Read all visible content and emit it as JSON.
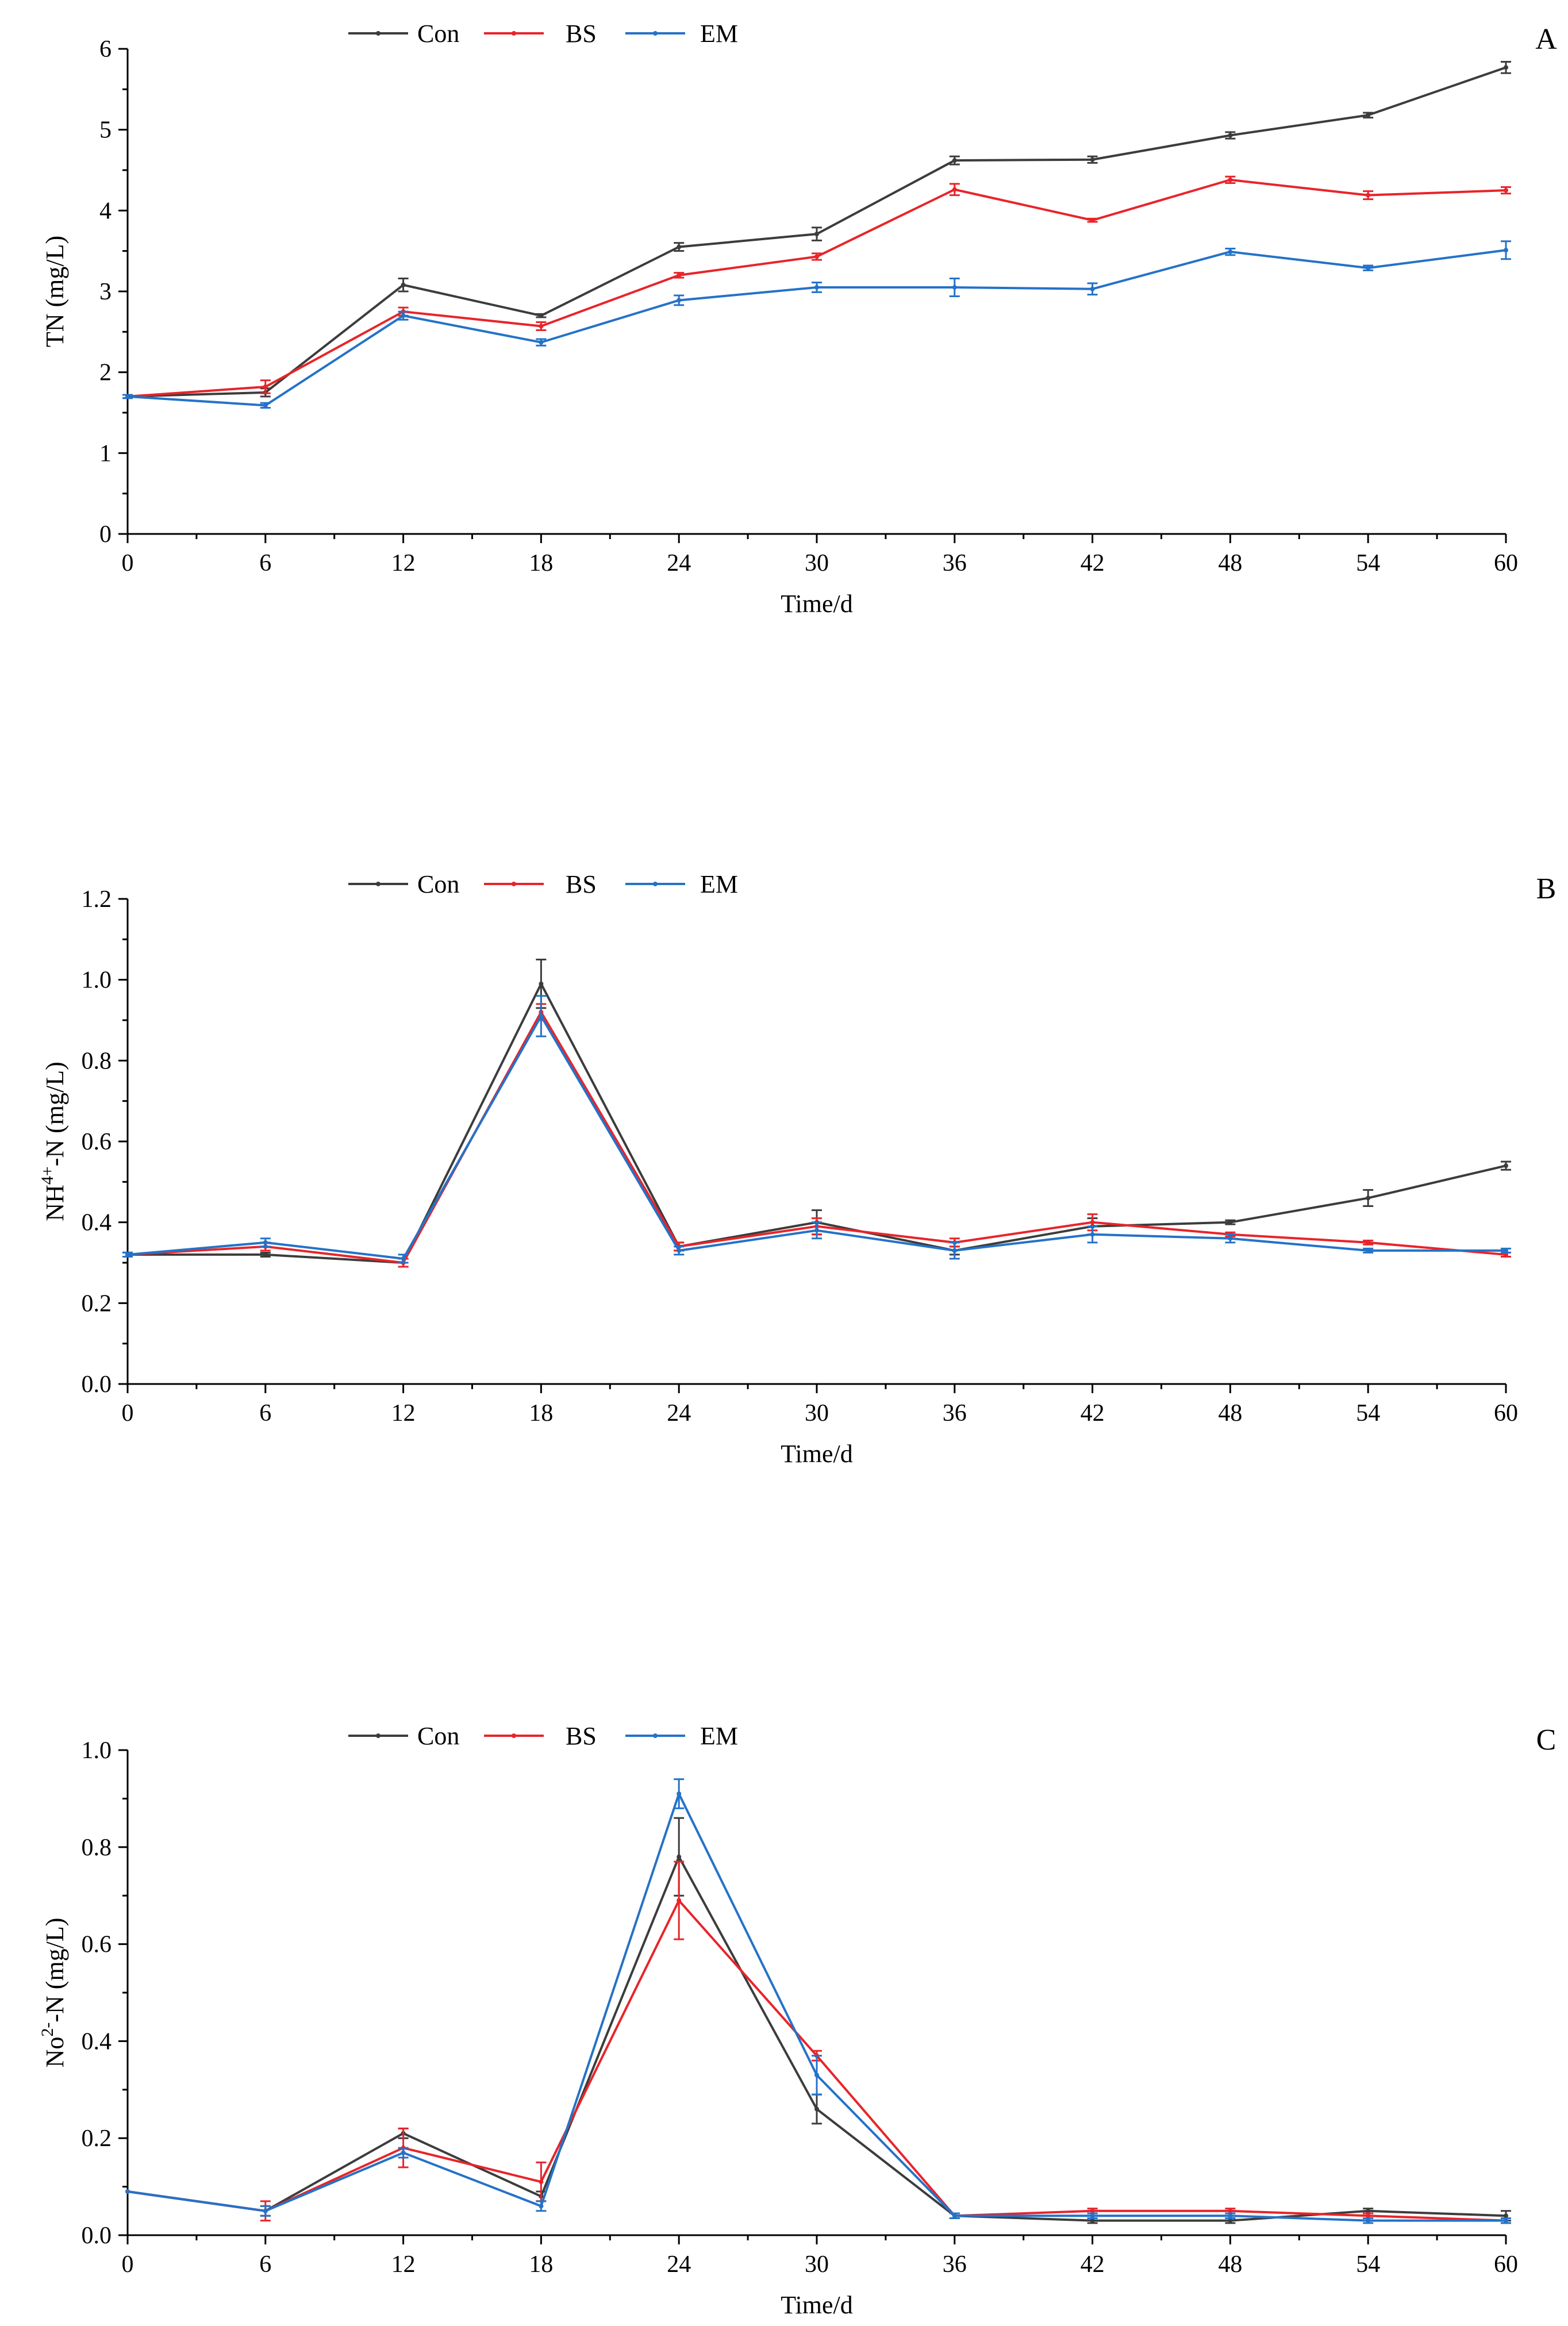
{
  "figure": {
    "aria_label": "Nitrogen concentration over time for Con, BS and EM treatments"
  },
  "colors": {
    "Con": "#3c3c3c",
    "BS": "#e8242a",
    "EM": "#2472c8"
  },
  "chart_data": [
    {
      "type": "line",
      "panel_label": "A",
      "ylabel": "TN (mg/L)",
      "xlabel": "Time/d",
      "x": [
        0,
        6,
        12,
        18,
        24,
        30,
        36,
        42,
        48,
        54,
        60
      ],
      "xlim": [
        0,
        60
      ],
      "ylim": [
        0,
        6
      ],
      "x_ticks": [
        0,
        6,
        12,
        18,
        24,
        30,
        36,
        42,
        48,
        54,
        60
      ],
      "y_ticks": [
        0,
        1,
        2,
        3,
        4,
        5,
        6
      ],
      "y_tick_labels": [
        "0",
        "1",
        "2",
        "3",
        "4",
        "5",
        "6"
      ],
      "legend": [
        "Con",
        "BS",
        "EM"
      ],
      "series": [
        {
          "name": "Con",
          "values": [
            1.7,
            1.75,
            3.08,
            2.7,
            3.55,
            3.71,
            4.62,
            4.63,
            4.93,
            5.18,
            5.77
          ],
          "errors": [
            0.02,
            0.05,
            0.08,
            0.02,
            0.05,
            0.08,
            0.05,
            0.04,
            0.04,
            0.03,
            0.07
          ]
        },
        {
          "name": "BS",
          "values": [
            1.7,
            1.82,
            2.75,
            2.57,
            3.2,
            3.43,
            4.26,
            3.88,
            4.38,
            4.19,
            4.25
          ],
          "errors": [
            0.02,
            0.08,
            0.05,
            0.05,
            0.03,
            0.04,
            0.07,
            0.02,
            0.04,
            0.05,
            0.04
          ]
        },
        {
          "name": "EM",
          "values": [
            1.7,
            1.59,
            2.7,
            2.37,
            2.89,
            3.05,
            3.05,
            3.03,
            3.49,
            3.29,
            3.51
          ],
          "errors": [
            0.02,
            0.03,
            0.05,
            0.04,
            0.06,
            0.06,
            0.11,
            0.07,
            0.04,
            0.03,
            0.11
          ]
        }
      ]
    },
    {
      "type": "line",
      "panel_label": "B",
      "ylabel": "NH4+-N (mg/L)",
      "ylabel_parts": [
        "NH",
        "4+",
        "-N (mg/L)"
      ],
      "xlabel": "Time/d",
      "x": [
        0,
        6,
        12,
        18,
        24,
        30,
        36,
        42,
        48,
        54,
        60
      ],
      "xlim": [
        0,
        60
      ],
      "ylim": [
        0,
        1.2
      ],
      "x_ticks": [
        0,
        6,
        12,
        18,
        24,
        30,
        36,
        42,
        48,
        54,
        60
      ],
      "y_ticks": [
        0,
        0.2,
        0.4,
        0.6,
        0.8,
        1.0,
        1.2
      ],
      "y_tick_labels": [
        "0.0",
        "0.2",
        "0.4",
        "0.6",
        "0.8",
        "1.0",
        "1.2"
      ],
      "legend": [
        "Con",
        "BS",
        "EM"
      ],
      "series": [
        {
          "name": "Con",
          "values": [
            0.32,
            0.32,
            0.3,
            0.99,
            0.34,
            0.4,
            0.33,
            0.39,
            0.4,
            0.46,
            0.54
          ],
          "errors": [
            0.005,
            0.005,
            0.01,
            0.06,
            0.01,
            0.03,
            0.01,
            0.02,
            0.005,
            0.02,
            0.01
          ]
        },
        {
          "name": "BS",
          "values": [
            0.32,
            0.34,
            0.3,
            0.92,
            0.34,
            0.39,
            0.35,
            0.4,
            0.37,
            0.35,
            0.32
          ],
          "errors": [
            0.005,
            0.01,
            0.01,
            0.02,
            0.01,
            0.02,
            0.01,
            0.02,
            0.005,
            0.005,
            0.005
          ]
        },
        {
          "name": "EM",
          "values": [
            0.32,
            0.35,
            0.31,
            0.91,
            0.33,
            0.38,
            0.33,
            0.37,
            0.36,
            0.33,
            0.33
          ],
          "errors": [
            0.005,
            0.01,
            0.01,
            0.05,
            0.01,
            0.02,
            0.02,
            0.02,
            0.01,
            0.005,
            0.005
          ]
        }
      ]
    },
    {
      "type": "line",
      "panel_label": "C",
      "ylabel": "No2--N (mg/L)",
      "ylabel_parts": [
        "No",
        "2-",
        "-N (mg/L)"
      ],
      "xlabel": "Time/d",
      "x": [
        0,
        6,
        12,
        18,
        24,
        30,
        36,
        42,
        48,
        54,
        60
      ],
      "xlim": [
        0,
        60
      ],
      "ylim": [
        0,
        1.0
      ],
      "x_ticks": [
        0,
        6,
        12,
        18,
        24,
        30,
        36,
        42,
        48,
        54,
        60
      ],
      "y_ticks": [
        0,
        0.2,
        0.4,
        0.6,
        0.8,
        1.0
      ],
      "y_tick_labels": [
        "0.0",
        "0.2",
        "0.4",
        "0.6",
        "0.8",
        "1.0"
      ],
      "legend": [
        "Con",
        "BS",
        "EM"
      ],
      "series": [
        {
          "name": "Con",
          "values": [
            0.09,
            0.05,
            0.21,
            0.08,
            0.78,
            0.26,
            0.04,
            0.03,
            0.03,
            0.05,
            0.04
          ],
          "errors": [
            0.0,
            0.01,
            0.01,
            0.01,
            0.08,
            0.03,
            0.005,
            0.005,
            0.005,
            0.005,
            0.01
          ]
        },
        {
          "name": "BS",
          "values": [
            0.09,
            0.05,
            0.18,
            0.11,
            0.69,
            0.37,
            0.04,
            0.05,
            0.05,
            0.04,
            0.03
          ],
          "errors": [
            0.0,
            0.02,
            0.04,
            0.04,
            0.08,
            0.01,
            0.005,
            0.005,
            0.005,
            0.005,
            0.005
          ]
        },
        {
          "name": "EM",
          "values": [
            0.09,
            0.05,
            0.17,
            0.06,
            0.91,
            0.33,
            0.04,
            0.04,
            0.04,
            0.03,
            0.03
          ],
          "errors": [
            0.0,
            0.01,
            0.01,
            0.01,
            0.03,
            0.04,
            0.005,
            0.005,
            0.005,
            0.005,
            0.005
          ]
        }
      ]
    }
  ]
}
